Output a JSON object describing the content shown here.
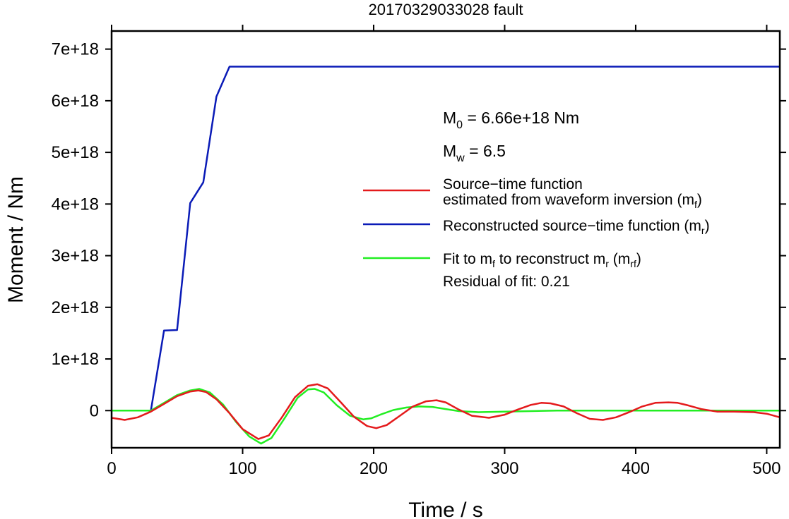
{
  "chart_data": {
    "type": "line",
    "title": "20170329033028 fault",
    "xlabel": "Time / s",
    "ylabel": "Moment / Nm",
    "xlim": [
      0,
      510
    ],
    "ylim": [
      -7.2e+17,
      7.35e+18
    ],
    "x_ticks": [
      0,
      100,
      200,
      300,
      400,
      500
    ],
    "x_tick_labels": [
      "0",
      "100",
      "200",
      "300",
      "400",
      "500"
    ],
    "y_ticks": [
      0,
      1e+18,
      2e+18,
      3e+18,
      4e+18,
      5e+18,
      6e+18,
      7e+18
    ],
    "y_tick_labels": [
      "0",
      "1e+18",
      "2e+18",
      "3e+18",
      "4e+18",
      "5e+18",
      "6e+18",
      "7e+18"
    ],
    "grid": false,
    "legend_position": "center-right",
    "annotations": {
      "m0_main": "M",
      "m0_sub": "0",
      "m0_rest": " = 6.66e+18 Nm",
      "mw_main": "M",
      "mw_sub": "w",
      "mw_rest": " = 6.5",
      "residual": "Residual of fit: 0.21"
    },
    "legend": {
      "red_line1": "Source−time function",
      "red_line2_main": "estimated from waveform inversion (m",
      "red_line2_sub": "f",
      "red_line2_end": ")",
      "blue_main": "Reconstructed source−time function (m",
      "blue_sub": "r",
      "blue_end": ")",
      "green_a": "Fit to m",
      "green_a_sub": "f",
      "green_b": " to reconstruct m",
      "green_b_sub": "r",
      "green_c": " (m",
      "green_c_sub": "rf",
      "green_d": ")"
    },
    "series": [
      {
        "key": "mf",
        "color": "#e41a1c",
        "x": [
          0,
          10,
          20,
          30,
          40,
          50,
          60,
          66,
          72,
          80,
          90,
          100,
          112,
          120,
          130,
          140,
          150,
          157,
          165,
          175,
          185,
          195,
          202,
          210,
          220,
          230,
          240,
          248,
          255,
          265,
          275,
          288,
          300,
          310,
          320,
          328,
          335,
          345,
          355,
          365,
          375,
          385,
          395,
          405,
          415,
          425,
          432,
          440,
          450,
          462,
          475,
          490,
          500,
          510
        ],
        "values": [
          -1.4e+17,
          -1.8e+17,
          -1.3e+17,
          -2e+16,
          1.3e+17,
          2.8e+17,
          3.7e+17,
          3.9e+17,
          3.6e+17,
          2.2e+17,
          -5e+16,
          -3.6e+17,
          -5.5e+17,
          -4.8e+17,
          -1.3e+17,
          2.6e+17,
          4.8e+17,
          5.1e+17,
          4.3e+17,
          1.6e+17,
          -1.2e+17,
          -3e+17,
          -3.4e+17,
          -2.8e+17,
          -1e+17,
          8e+16,
          1.8e+17,
          2e+17,
          1.6e+17,
          2e+16,
          -1e+17,
          -1.4e+17,
          -8e+16,
          2e+16,
          1.1e+17,
          1.5e+17,
          1.4e+17,
          8e+16,
          -5e+16,
          -1.6e+17,
          -1.8e+17,
          -1.3e+17,
          -3e+16,
          8e+16,
          1.5e+17,
          1.6e+17,
          1.5e+17,
          1e+17,
          3e+16,
          -2e+16,
          -2e+16,
          -3e+16,
          -6e+16,
          -1.3e+17
        ]
      },
      {
        "key": "mr",
        "color": "#0a1bb7",
        "x": [
          0,
          30,
          40,
          50,
          60,
          70,
          80,
          90,
          510
        ],
        "values": [
          0,
          0,
          1.55e+18,
          1.56e+18,
          4.02e+18,
          4.42e+18,
          6.08e+18,
          6.66e+18,
          6.66e+18
        ]
      },
      {
        "key": "mrf",
        "color": "#22ee22",
        "x": [
          0,
          10,
          20,
          30,
          40,
          50,
          60,
          67,
          75,
          85,
          95,
          105,
          114,
          122,
          132,
          142,
          150,
          155,
          162,
          172,
          182,
          192,
          198,
          205,
          215,
          225,
          235,
          245,
          255,
          265,
          280,
          300,
          320,
          340,
          360,
          380,
          400,
          420,
          440,
          460,
          480,
          500,
          510
        ],
        "values": [
          0,
          0,
          0,
          0,
          1.5e+17,
          3e+17,
          3.9e+17,
          4.2e+17,
          3.5e+17,
          1.2e+17,
          -2.2e+17,
          -5e+17,
          -6.4e+17,
          -5.3e+17,
          -1.5e+17,
          2.5e+17,
          4.1e+17,
          4.2e+17,
          3.5e+17,
          1e+17,
          -1e+17,
          -1.7e+17,
          -1.5e+17,
          -8e+16,
          1e+16,
          6e+16,
          8e+16,
          7e+16,
          3e+16,
          -1e+16,
          -3e+16,
          -2e+16,
          -1e+16,
          0,
          0,
          0,
          0,
          0,
          0,
          0,
          0,
          0,
          0
        ]
      }
    ]
  }
}
